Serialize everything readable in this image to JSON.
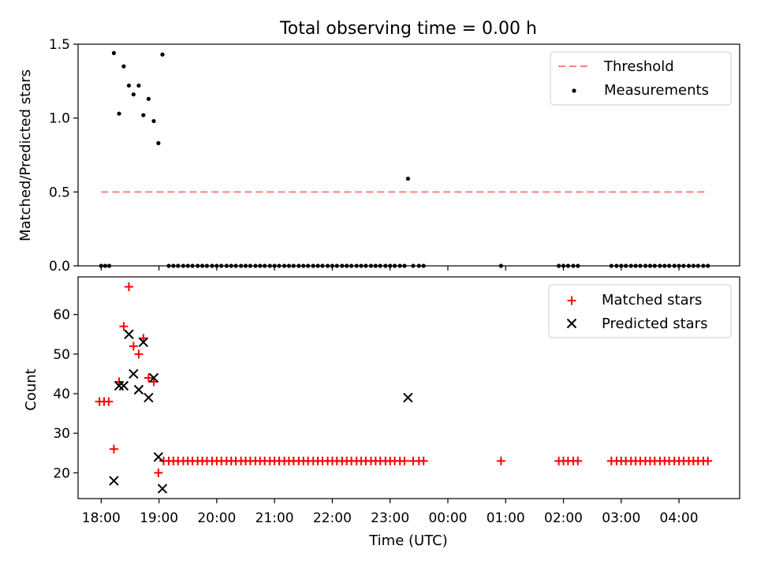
{
  "title": "Total observing time = 0.00 h",
  "colors": {
    "threshold": "#ff7f7f",
    "measurement": "#000000",
    "matched": "#ff0000",
    "predicted": "#000000"
  },
  "chart_data": [
    {
      "type": "scatter",
      "ylabel": "Matched/Predicted stars",
      "xlim_hours": [
        17.6,
        29.05
      ],
      "ylim": [
        0,
        1.5
      ],
      "yticks": [
        0.0,
        0.5,
        1.0,
        1.5
      ],
      "ytick_labels": [
        "0.0",
        "0.5",
        "1.0",
        "1.5"
      ],
      "legend_position": "top-right",
      "threshold": {
        "name": "Threshold",
        "value": 0.5,
        "x_range_hours": [
          18.0,
          28.5
        ]
      },
      "measurements": {
        "name": "Measurements",
        "x_hours": [
          18.22,
          18.31,
          18.39,
          18.48,
          18.56,
          18.65,
          18.73,
          18.82,
          18.91,
          18.99,
          19.06,
          23.31
        ],
        "y": [
          1.44,
          1.03,
          1.35,
          1.22,
          1.16,
          1.22,
          1.02,
          1.13,
          0.98,
          0.83,
          1.43,
          0.59
        ],
        "zero_x_hours": [
          18.0,
          18.07,
          18.14,
          19.17,
          19.25,
          19.33,
          19.42,
          19.5,
          19.58,
          19.67,
          19.75,
          19.83,
          19.92,
          20.0,
          20.08,
          20.17,
          20.25,
          20.33,
          20.42,
          20.5,
          20.58,
          20.67,
          20.75,
          20.83,
          20.92,
          21.0,
          21.08,
          21.17,
          21.25,
          21.33,
          21.42,
          21.5,
          21.58,
          21.67,
          21.75,
          21.83,
          21.92,
          22.0,
          22.08,
          22.17,
          22.25,
          22.33,
          22.42,
          22.5,
          22.58,
          22.67,
          22.75,
          22.83,
          22.92,
          23.0,
          23.08,
          23.17,
          23.25,
          23.4,
          23.5,
          23.58,
          24.92,
          25.92,
          26.0,
          26.08,
          26.17,
          26.25,
          26.83,
          26.92,
          27.0,
          27.08,
          27.17,
          27.25,
          27.33,
          27.42,
          27.5,
          27.58,
          27.67,
          27.75,
          27.83,
          27.92,
          28.0,
          28.08,
          28.17,
          28.25,
          28.33,
          28.42,
          28.5
        ]
      }
    },
    {
      "type": "scatter",
      "xlabel": "Time (UTC)",
      "ylabel": "Count",
      "xlim_hours": [
        17.6,
        29.05
      ],
      "ylim": [
        13.5,
        69.5
      ],
      "yticks": [
        20,
        30,
        40,
        50,
        60
      ],
      "ytick_labels": [
        "20",
        "30",
        "40",
        "50",
        "60"
      ],
      "xticks_hours": [
        18,
        19,
        20,
        21,
        22,
        23,
        24,
        25,
        26,
        27,
        28
      ],
      "xtick_labels": [
        "18:00",
        "19:00",
        "20:00",
        "21:00",
        "22:00",
        "23:00",
        "00:00",
        "01:00",
        "02:00",
        "03:00",
        "04:00"
      ],
      "legend_position": "top-right",
      "series": [
        {
          "name": "Matched stars",
          "marker": "plus",
          "x_hours": [
            17.97,
            18.05,
            18.13,
            18.22,
            18.31,
            18.39,
            18.48,
            18.56,
            18.65,
            18.73,
            18.82,
            18.91,
            18.99
          ],
          "y": [
            38,
            38,
            38,
            26,
            43,
            57,
            67,
            52,
            50,
            54,
            44,
            43,
            20
          ],
          "baseline": 23,
          "baseline_x_hours": [
            19.08,
            19.17,
            19.25,
            19.33,
            19.42,
            19.5,
            19.58,
            19.67,
            19.75,
            19.83,
            19.92,
            20.0,
            20.08,
            20.17,
            20.25,
            20.33,
            20.42,
            20.5,
            20.58,
            20.67,
            20.75,
            20.83,
            20.92,
            21.0,
            21.08,
            21.17,
            21.25,
            21.33,
            21.42,
            21.5,
            21.58,
            21.67,
            21.75,
            21.83,
            21.92,
            22.0,
            22.08,
            22.17,
            22.25,
            22.33,
            22.42,
            22.5,
            22.58,
            22.67,
            22.75,
            22.83,
            22.92,
            23.0,
            23.08,
            23.17,
            23.25,
            23.4,
            23.5,
            23.58,
            24.92,
            25.92,
            26.0,
            26.08,
            26.17,
            26.25,
            26.83,
            26.92,
            27.0,
            27.08,
            27.17,
            27.25,
            27.33,
            27.42,
            27.5,
            27.58,
            27.67,
            27.75,
            27.83,
            27.92,
            28.0,
            28.08,
            28.17,
            28.25,
            28.33,
            28.42,
            28.5
          ]
        },
        {
          "name": "Predicted stars",
          "marker": "x",
          "x_hours": [
            18.22,
            18.31,
            18.39,
            18.48,
            18.56,
            18.65,
            18.73,
            18.82,
            18.91,
            18.99,
            19.06,
            23.31
          ],
          "y": [
            18,
            42,
            42,
            55,
            45,
            41,
            53,
            39,
            44,
            24,
            16,
            39
          ]
        }
      ]
    }
  ]
}
